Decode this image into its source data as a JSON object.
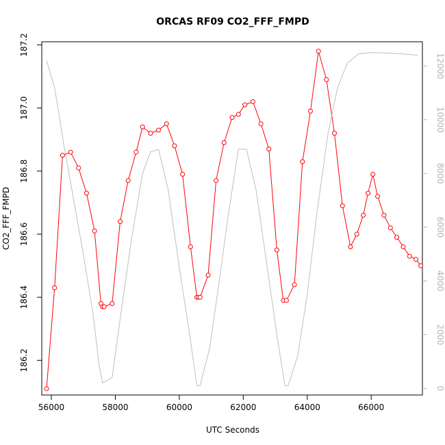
{
  "chart_data": {
    "type": "line",
    "title": "ORCAS RF09 CO2_FFF_FMPD",
    "xlabel": "UTC Seconds",
    "ylabel": "CO2_FFF_FMPD",
    "y2label": "",
    "xlim": [
      55700,
      67600
    ],
    "ylim": [
      186.09,
      187.21
    ],
    "y2lim": [
      -250,
      12900
    ],
    "x_ticks": [
      56000,
      58000,
      60000,
      62000,
      64000,
      66000
    ],
    "y_ticks": [
      186.2,
      186.4,
      186.6,
      186.8,
      187.0,
      187.2
    ],
    "y2_ticks": [
      0,
      2000,
      4000,
      6000,
      8000,
      10000,
      12000
    ],
    "grid": false,
    "series": [
      {
        "axis": "left",
        "color": "#ff0000",
        "style": "line-with-open-circles",
        "x": [
          55850,
          56100,
          56350,
          56600,
          56850,
          57100,
          57350,
          57550,
          57600,
          57650,
          57900,
          58150,
          58400,
          58650,
          58850,
          59100,
          59350,
          59600,
          59850,
          60100,
          60350,
          60550,
          60600,
          60650,
          60900,
          61150,
          61400,
          61650,
          61850,
          62050,
          62300,
          62550,
          62800,
          63050,
          63250,
          63350,
          63600,
          63850,
          64100,
          64350,
          64600,
          64850,
          65100,
          65350,
          65550,
          65750,
          65900,
          66050,
          66200,
          66400,
          66600,
          66800,
          67000,
          67200,
          67400,
          67550
        ],
        "values": [
          186.11,
          186.43,
          186.85,
          186.86,
          186.81,
          186.73,
          186.61,
          186.38,
          186.37,
          186.37,
          186.38,
          186.64,
          186.77,
          186.86,
          186.94,
          186.92,
          186.93,
          186.95,
          186.88,
          186.79,
          186.56,
          186.4,
          186.4,
          186.4,
          186.47,
          186.77,
          186.89,
          186.97,
          186.98,
          187.01,
          187.02,
          186.95,
          186.87,
          186.55,
          186.39,
          186.39,
          186.44,
          186.83,
          186.99,
          187.18,
          187.09,
          186.92,
          186.69,
          186.56,
          186.6,
          186.66,
          186.73,
          186.79,
          186.72,
          186.66,
          186.62,
          186.59,
          186.56,
          186.53,
          186.52,
          186.5
        ]
      },
      {
        "axis": "right",
        "color": "#bebebe",
        "style": "line",
        "x": [
          55850,
          56100,
          56400,
          56700,
          57000,
          57300,
          57500,
          57600,
          57900,
          58200,
          58500,
          58850,
          59100,
          59350,
          59650,
          60000,
          60300,
          60550,
          60650,
          60950,
          61250,
          61550,
          61850,
          62100,
          62400,
          62750,
          63050,
          63300,
          63400,
          63700,
          64000,
          64300,
          64650,
          64950,
          65250,
          65600,
          66000,
          66500,
          67000,
          67450
        ],
        "values": [
          12200,
          11200,
          9000,
          7000,
          5000,
          2800,
          800,
          200,
          400,
          3000,
          5500,
          8000,
          8800,
          8900,
          7400,
          4500,
          2200,
          100,
          100,
          1500,
          4000,
          6600,
          8900,
          8900,
          7400,
          4500,
          2000,
          100,
          100,
          1200,
          3500,
          6500,
          9500,
          11200,
          12100,
          12450,
          12500,
          12480,
          12450,
          12400
        ]
      }
    ]
  }
}
